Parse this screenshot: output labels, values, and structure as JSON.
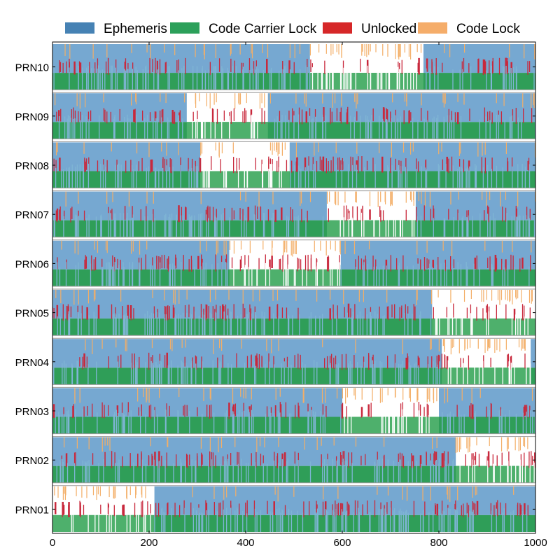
{
  "chart_data": {
    "type": "timeline",
    "title": "",
    "xlabel": "",
    "ylabel": "",
    "xlim": [
      0,
      1000
    ],
    "x_ticks": [
      0,
      200,
      400,
      600,
      800,
      1000
    ],
    "legend_position": "top",
    "legend": [
      {
        "key": "ephemeris",
        "label": "Ephemeris",
        "color": "#4682b4"
      },
      {
        "key": "code_carrier_lock",
        "label": "Code Carrier Lock",
        "color": "#2ca05a"
      },
      {
        "key": "unlocked",
        "label": "Unlocked",
        "color": "#d62728"
      },
      {
        "key": "code_lock",
        "label": "Code Lock",
        "color": "#f5ad6a"
      }
    ],
    "satellites": [
      {
        "name": "PRN10",
        "ephemeris_gaps": [
          [
            533,
            768
          ]
        ]
      },
      {
        "name": "PRN09",
        "ephemeris_gaps": [
          [
            278,
            446
          ]
        ]
      },
      {
        "name": "PRN08",
        "ephemeris_gaps": [
          [
            306,
            491
          ]
        ]
      },
      {
        "name": "PRN07",
        "ephemeris_gaps": [
          [
            568,
            752
          ]
        ]
      },
      {
        "name": "PRN06",
        "ephemeris_gaps": [
          [
            366,
            597
          ]
        ]
      },
      {
        "name": "PRN05",
        "ephemeris_gaps": [
          [
            786,
            1000
          ]
        ]
      },
      {
        "name": "PRN04",
        "ephemeris_gaps": [
          [
            806,
            990
          ]
        ]
      },
      {
        "name": "PRN03",
        "ephemeris_gaps": [
          [
            600,
            800
          ]
        ]
      },
      {
        "name": "PRN02",
        "ephemeris_gaps": [
          [
            835,
            1000
          ]
        ]
      },
      {
        "name": "PRN01",
        "ephemeris_gaps": [
          [
            0,
            211
          ]
        ]
      }
    ],
    "colors": {
      "ephemeris": "#76a8d1",
      "carrier_lock": "#2f9e58",
      "carrier_lock_gap": "#4eb06c",
      "carrier_slip": "#7fb5d4",
      "unlocked": "#c8283c",
      "code_lock": "#f3ae67"
    }
  }
}
